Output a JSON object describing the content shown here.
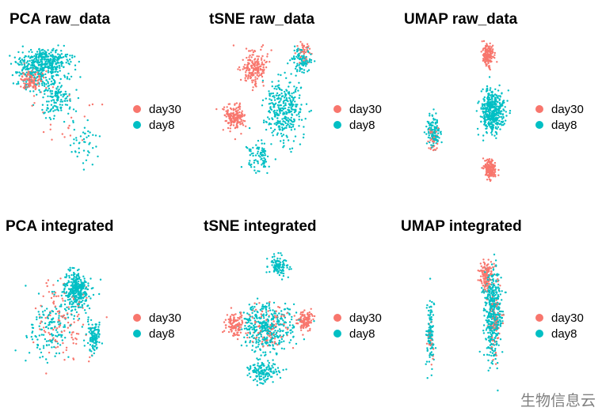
{
  "colors": {
    "day30": "#F8766D",
    "day8": "#00BFC4"
  },
  "watermark": "生物信息云",
  "chart_data": [
    {
      "type": "scatter",
      "title": "PCA raw_data",
      "xlabel": "",
      "ylabel": "",
      "legend": [
        "day30",
        "day8"
      ],
      "legend_position": "right",
      "grid": false,
      "clusters": [
        {
          "series": "day8",
          "n": 320,
          "cx": 0.35,
          "cy": 0.15,
          "sx": 0.22,
          "sy": 0.08
        },
        {
          "series": "day8",
          "n": 160,
          "cx": 0.25,
          "cy": 0.25,
          "sx": 0.18,
          "sy": 0.09
        },
        {
          "series": "day30",
          "n": 110,
          "cx": 0.22,
          "cy": 0.28,
          "sx": 0.1,
          "sy": 0.07
        },
        {
          "series": "day8",
          "n": 140,
          "cx": 0.45,
          "cy": 0.4,
          "sx": 0.14,
          "sy": 0.12
        },
        {
          "series": "day8",
          "n": 45,
          "cx": 0.7,
          "cy": 0.72,
          "sx": 0.12,
          "sy": 0.15
        },
        {
          "series": "day30",
          "n": 22,
          "cx": 0.55,
          "cy": 0.55,
          "sx": 0.25,
          "sy": 0.2
        }
      ]
    },
    {
      "type": "scatter",
      "title": "tSNE raw_data",
      "xlabel": "",
      "ylabel": "",
      "legend": [
        "day30",
        "day8"
      ],
      "legend_position": "right",
      "grid": false,
      "clusters": [
        {
          "series": "day30",
          "n": 190,
          "cx": 0.35,
          "cy": 0.2,
          "sx": 0.1,
          "sy": 0.1
        },
        {
          "series": "day8",
          "n": 90,
          "cx": 0.78,
          "cy": 0.15,
          "sx": 0.08,
          "sy": 0.08
        },
        {
          "series": "day30",
          "n": 40,
          "cx": 0.8,
          "cy": 0.1,
          "sx": 0.06,
          "sy": 0.06
        },
        {
          "series": "day30",
          "n": 170,
          "cx": 0.18,
          "cy": 0.55,
          "sx": 0.09,
          "sy": 0.08
        },
        {
          "series": "day8",
          "n": 330,
          "cx": 0.62,
          "cy": 0.5,
          "sx": 0.16,
          "sy": 0.2
        },
        {
          "series": "day8",
          "n": 80,
          "cx": 0.4,
          "cy": 0.82,
          "sx": 0.1,
          "sy": 0.1
        }
      ]
    },
    {
      "type": "scatter",
      "title": "UMAP raw_data",
      "xlabel": "",
      "ylabel": "",
      "legend": [
        "day30",
        "day8"
      ],
      "legend_position": "right",
      "grid": false,
      "clusters": [
        {
          "series": "day30",
          "n": 150,
          "cx": 0.68,
          "cy": 0.1,
          "sx": 0.05,
          "sy": 0.07
        },
        {
          "series": "day8",
          "n": 420,
          "cx": 0.72,
          "cy": 0.48,
          "sx": 0.1,
          "sy": 0.13
        },
        {
          "series": "day30",
          "n": 170,
          "cx": 0.7,
          "cy": 0.88,
          "sx": 0.05,
          "sy": 0.06
        },
        {
          "series": "day8",
          "n": 110,
          "cx": 0.15,
          "cy": 0.62,
          "sx": 0.06,
          "sy": 0.1
        },
        {
          "series": "day30",
          "n": 35,
          "cx": 0.15,
          "cy": 0.68,
          "sx": 0.04,
          "sy": 0.08
        }
      ]
    },
    {
      "type": "scatter",
      "title": "PCA integrated",
      "xlabel": "",
      "ylabel": "",
      "legend": [
        "day30",
        "day8"
      ],
      "legend_position": "right",
      "grid": false,
      "clusters": [
        {
          "series": "day8",
          "n": 330,
          "cx": 0.65,
          "cy": 0.3,
          "sx": 0.12,
          "sy": 0.12
        },
        {
          "series": "day8",
          "n": 150,
          "cx": 0.4,
          "cy": 0.55,
          "sx": 0.2,
          "sy": 0.18
        },
        {
          "series": "day8",
          "n": 120,
          "cx": 0.82,
          "cy": 0.62,
          "sx": 0.06,
          "sy": 0.1
        },
        {
          "series": "day30",
          "n": 110,
          "cx": 0.5,
          "cy": 0.5,
          "sx": 0.25,
          "sy": 0.25
        }
      ]
    },
    {
      "type": "scatter",
      "title": "tSNE integrated",
      "xlabel": "",
      "ylabel": "",
      "legend": [
        "day30",
        "day8"
      ],
      "legend_position": "right",
      "grid": false,
      "clusters": [
        {
          "series": "day8",
          "n": 100,
          "cx": 0.55,
          "cy": 0.12,
          "sx": 0.08,
          "sy": 0.07
        },
        {
          "series": "day8",
          "n": 380,
          "cx": 0.45,
          "cy": 0.55,
          "sx": 0.2,
          "sy": 0.15
        },
        {
          "series": "day30",
          "n": 120,
          "cx": 0.15,
          "cy": 0.53,
          "sx": 0.07,
          "sy": 0.07
        },
        {
          "series": "day30",
          "n": 110,
          "cx": 0.8,
          "cy": 0.5,
          "sx": 0.07,
          "sy": 0.06
        },
        {
          "series": "day8",
          "n": 140,
          "cx": 0.42,
          "cy": 0.85,
          "sx": 0.12,
          "sy": 0.08
        },
        {
          "series": "day30",
          "n": 90,
          "cx": 0.45,
          "cy": 0.55,
          "sx": 0.2,
          "sy": 0.15
        }
      ]
    },
    {
      "type": "scatter",
      "title": "UMAP integrated",
      "xlabel": "",
      "ylabel": "",
      "legend": [
        "day30",
        "day8"
      ],
      "legend_position": "right",
      "grid": false,
      "clusters": [
        {
          "series": "day30",
          "n": 130,
          "cx": 0.62,
          "cy": 0.2,
          "sx": 0.06,
          "sy": 0.1
        },
        {
          "series": "day8",
          "n": 450,
          "cx": 0.68,
          "cy": 0.45,
          "sx": 0.07,
          "sy": 0.28
        },
        {
          "series": "day8",
          "n": 110,
          "cx": 0.1,
          "cy": 0.6,
          "sx": 0.03,
          "sy": 0.2
        },
        {
          "series": "day30",
          "n": 70,
          "cx": 0.7,
          "cy": 0.5,
          "sx": 0.06,
          "sy": 0.25
        },
        {
          "series": "day30",
          "n": 20,
          "cx": 0.1,
          "cy": 0.65,
          "sx": 0.03,
          "sy": 0.15
        }
      ]
    }
  ]
}
